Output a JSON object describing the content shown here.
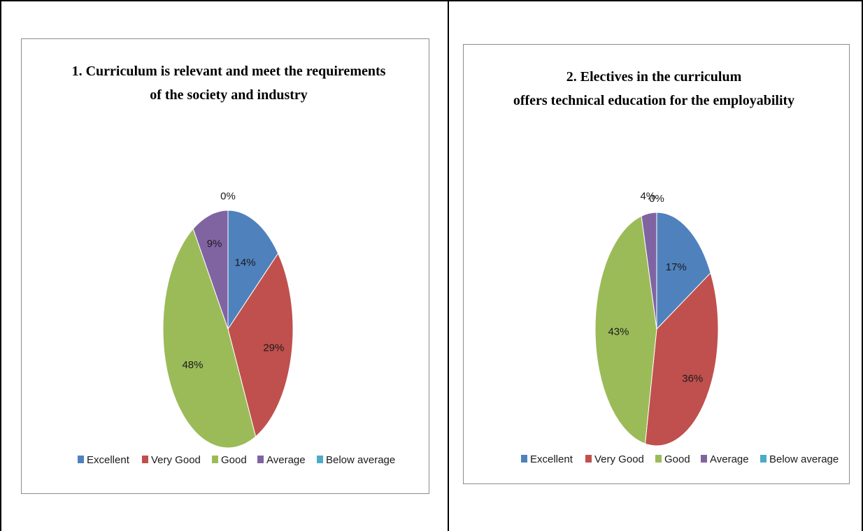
{
  "chart_data": [
    {
      "type": "pie",
      "title_lines": [
        "1. Curriculum is relevant and meet the requirements",
        "of the society and industry"
      ],
      "categories": [
        "Excellent",
        "Very Good",
        "Good",
        "Average",
        "Below average"
      ],
      "values": [
        14,
        29,
        48,
        9,
        0
      ],
      "data_labels": [
        "14%",
        "29%",
        "48%",
        "9%",
        "0%"
      ],
      "legend": "bottom"
    },
    {
      "type": "pie",
      "title_lines": [
        "2. Electives in the curriculum",
        "offers technical education for the employability"
      ],
      "categories": [
        "Excellent",
        "Very Good",
        "Good",
        "Average",
        "Below average"
      ],
      "values": [
        17,
        36,
        43,
        4,
        0
      ],
      "data_labels": [
        "17%",
        "36%",
        "43%",
        "4%",
        "0%"
      ],
      "legend": "bottom"
    }
  ],
  "colors": {
    "Excellent": "#4f81bd",
    "Very Good": "#c0504d",
    "Good": "#9bbb59",
    "Average": "#8064a2",
    "Below average": "#4bacc6"
  }
}
